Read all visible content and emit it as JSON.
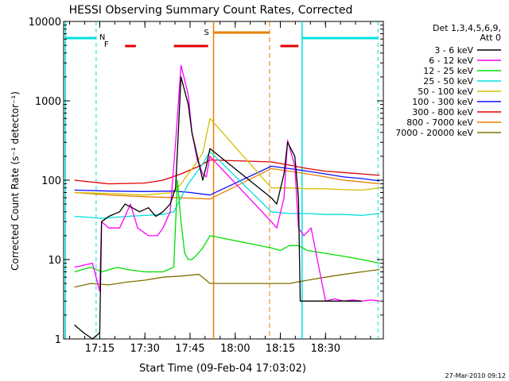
{
  "chart_data": {
    "type": "line",
    "title": "HESSI Observing Summary Count Rates, Corrected",
    "xlabel": "Start Time (09-Feb-04 17:03:02)",
    "ylabel": "Corrected Count Rate (s⁻¹ detector⁻¹)",
    "footer": "27-Mar-2010 09:12",
    "y_scale": "log",
    "ylim": [
      1,
      10000
    ],
    "xlim_minutes": [
      17.05,
      18.82
    ],
    "x_ticks": [
      {
        "label": "17:15",
        "t": 17.25
      },
      {
        "label": "17:30",
        "t": 17.5
      },
      {
        "label": "17:45",
        "t": 17.75
      },
      {
        "label": "18:00",
        "t": 18.0
      },
      {
        "label": "18:15",
        "t": 18.25
      },
      {
        "label": "18:30",
        "t": 18.5
      }
    ],
    "y_ticks": [
      {
        "label": "1",
        "v": 1
      },
      {
        "label": "10",
        "v": 10
      },
      {
        "label": "100",
        "v": 100
      },
      {
        "label": "1000",
        "v": 1000
      },
      {
        "label": "10000",
        "v": 10000
      }
    ],
    "legend": {
      "header1": "Det 1,3,4,5,6,9,",
      "header2": "Att 0",
      "placement": "right"
    },
    "flags": [
      {
        "label": "N",
        "color": "#00e0e0"
      },
      {
        "label": "F",
        "color": "#e00000"
      },
      {
        "label": "S",
        "color": "#e88000"
      }
    ],
    "series": [
      {
        "name": "3 - 6 keV",
        "color": "#000000",
        "x": [
          17.11,
          17.16,
          17.21,
          17.25,
          17.26,
          17.3,
          17.36,
          17.39,
          17.43,
          17.47,
          17.52,
          17.56,
          17.6,
          17.64,
          17.67,
          17.7,
          17.74,
          17.76,
          17.79,
          17.82,
          17.84,
          17.86,
          18.2,
          18.23,
          18.27,
          18.29,
          18.33,
          18.35,
          18.36,
          18.39,
          18.42,
          18.45,
          18.5,
          18.55,
          18.6,
          18.65,
          18.7
        ],
        "y": [
          1.5,
          1.2,
          1.0,
          1.2,
          30,
          35,
          40,
          50,
          45,
          40,
          45,
          35,
          40,
          50,
          80,
          2000,
          900,
          400,
          200,
          100,
          150,
          250,
          60,
          50,
          120,
          300,
          200,
          60,
          3,
          3,
          3,
          3,
          3,
          3,
          3,
          3,
          3
        ]
      },
      {
        "name": "6 - 12 keV",
        "color": "#ff00ff",
        "x": [
          17.11,
          17.16,
          17.21,
          17.25,
          17.26,
          17.3,
          17.36,
          17.39,
          17.42,
          17.46,
          17.52,
          17.57,
          17.6,
          17.64,
          17.67,
          17.7,
          17.74,
          17.76,
          17.79,
          17.82,
          17.84,
          17.86,
          18.2,
          18.23,
          18.27,
          18.29,
          18.33,
          18.35,
          18.38,
          18.42,
          18.5,
          18.55,
          18.6,
          18.65,
          18.7,
          18.75,
          18.8
        ],
        "y": [
          8,
          8.5,
          9,
          4,
          30,
          25,
          25,
          35,
          50,
          25,
          20,
          20,
          25,
          40,
          300,
          2800,
          1200,
          400,
          180,
          120,
          110,
          200,
          30,
          25,
          60,
          320,
          150,
          25,
          20,
          25,
          3,
          3.2,
          3,
          3.1,
          3,
          3.1,
          3
        ]
      },
      {
        "name": "12 - 25 keV",
        "color": "#00dd00",
        "x": [
          17.11,
          17.2,
          17.26,
          17.35,
          17.4,
          17.5,
          17.6,
          17.66,
          17.68,
          17.7,
          17.72,
          17.74,
          17.76,
          17.78,
          17.82,
          17.86,
          18.2,
          18.25,
          18.3,
          18.35,
          18.4,
          18.5,
          18.6,
          18.7,
          18.8
        ],
        "y": [
          7,
          8,
          7,
          8,
          7.5,
          7,
          7,
          8,
          100,
          30,
          12,
          10,
          10,
          11,
          14,
          20,
          14,
          13,
          15,
          15,
          13,
          12,
          11,
          10,
          9
        ]
      },
      {
        "name": "25 - 50 keV",
        "color": "#00dddd",
        "x": [
          17.11,
          17.2,
          17.26,
          17.4,
          17.5,
          17.6,
          17.66,
          17.7,
          17.74,
          17.78,
          17.82,
          17.86,
          18.2,
          18.3,
          18.4,
          18.5,
          18.6,
          18.7,
          18.8
        ],
        "y": [
          35,
          34,
          33,
          35,
          36,
          37,
          40,
          60,
          90,
          120,
          160,
          230,
          40,
          38,
          38,
          37,
          37,
          36,
          38
        ]
      },
      {
        "name": "50 - 100 keV",
        "color": "#d4c000",
        "x": [
          17.11,
          17.3,
          17.5,
          17.66,
          17.7,
          17.74,
          17.78,
          17.82,
          17.86,
          18.2,
          18.3,
          18.4,
          18.5,
          18.6,
          18.7,
          18.8
        ],
        "y": [
          70,
          68,
          65,
          70,
          90,
          120,
          160,
          220,
          600,
          80,
          80,
          78,
          78,
          76,
          75,
          80
        ]
      },
      {
        "name": "100 - 300 keV",
        "color": "#1010ff",
        "x": [
          17.11,
          17.3,
          17.5,
          17.66,
          17.75,
          17.86,
          18.2,
          18.3,
          18.4,
          18.5,
          18.6,
          18.7,
          18.8
        ],
        "y": [
          75,
          73,
          72,
          73,
          70,
          65,
          150,
          140,
          130,
          120,
          110,
          105,
          98
        ]
      },
      {
        "name": "300 - 800 keV",
        "color": "#e00000",
        "x": [
          17.11,
          17.3,
          17.5,
          17.6,
          17.7,
          17.8,
          17.86,
          18.2,
          18.3,
          18.4,
          18.5,
          18.6,
          18.7,
          18.8
        ],
        "y": [
          100,
          90,
          92,
          100,
          120,
          150,
          180,
          170,
          155,
          140,
          130,
          125,
          120,
          115
        ]
      },
      {
        "name": "800 - 7000 keV",
        "color": "#e88000",
        "x": [
          17.11,
          17.3,
          17.5,
          17.7,
          17.86,
          18.2,
          18.3,
          18.4,
          18.5,
          18.6,
          18.7,
          18.8
        ],
        "y": [
          70,
          65,
          62,
          60,
          58,
          140,
          130,
          120,
          110,
          100,
          95,
          90
        ]
      },
      {
        "name": "7000 - 20000 keV",
        "color": "#807000",
        "x": [
          17.11,
          17.2,
          17.3,
          17.4,
          17.5,
          17.6,
          17.7,
          17.8,
          17.86,
          18.2,
          18.3,
          18.4,
          18.5,
          18.6,
          18.7,
          18.8
        ],
        "y": [
          4.5,
          5,
          4.8,
          5.2,
          5.5,
          6,
          6.2,
          6.5,
          5,
          5,
          5,
          5.5,
          6,
          6.5,
          7,
          7.5
        ]
      }
    ]
  }
}
